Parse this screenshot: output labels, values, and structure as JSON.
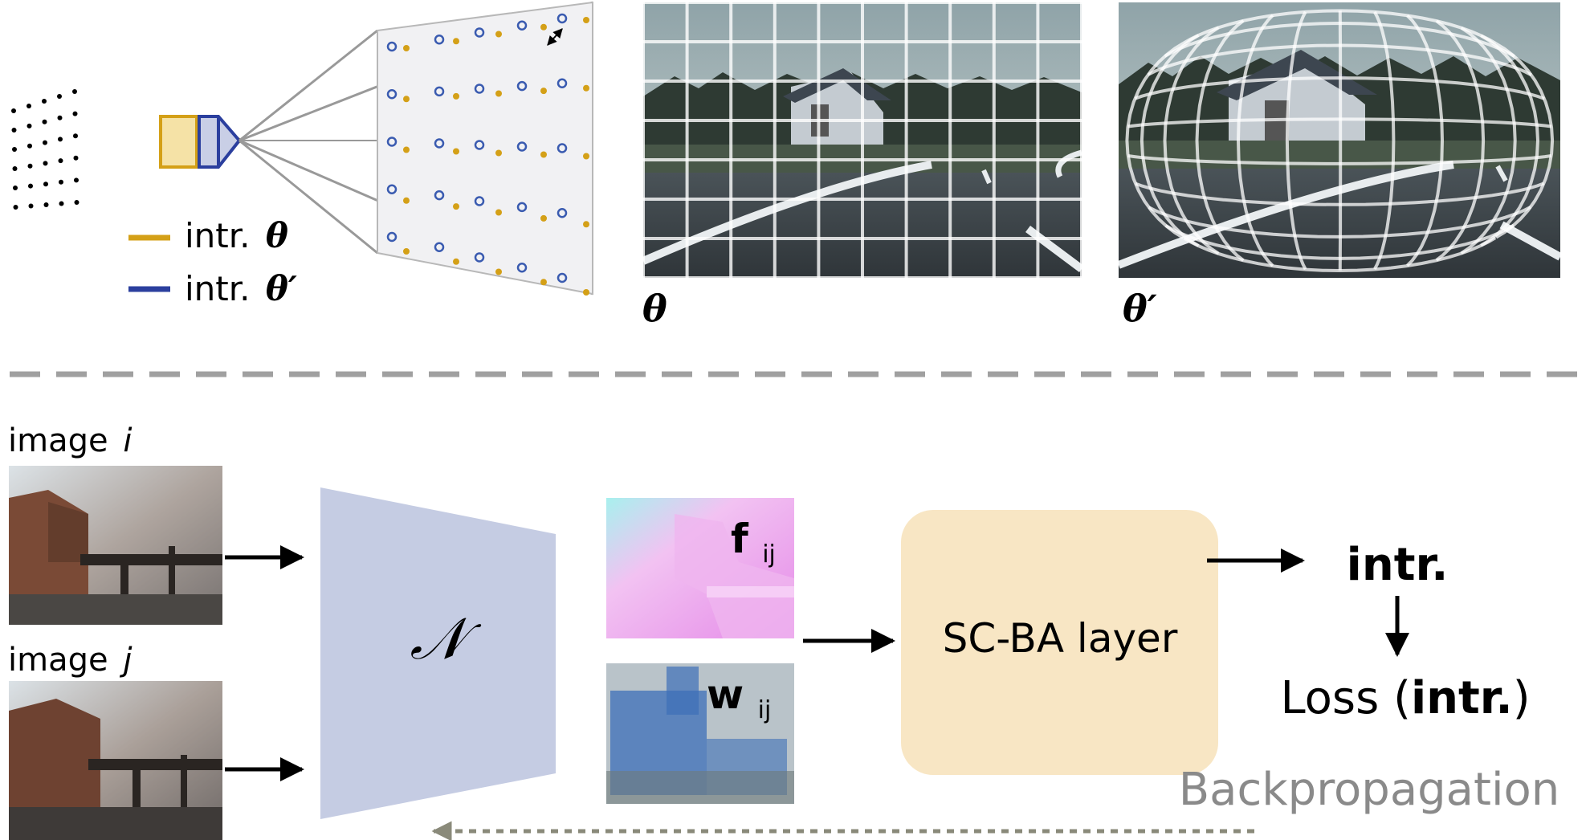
{
  "top": {
    "legend": {
      "intr_theta": "intr.",
      "intr_theta_prime": "intr.",
      "theta_symbol": "θ",
      "theta_prime_symbol": "θ′"
    },
    "image_labels": {
      "left": "θ",
      "right": "θ′"
    }
  },
  "bottom": {
    "image_i_label": "image",
    "image_i_var": "i",
    "image_j_label": "image",
    "image_j_var": "j",
    "network_symbol": "𝒩",
    "flow_label": "f",
    "flow_sub": "ij",
    "weight_label": "w",
    "weight_sub": "ij",
    "scba_label": "SC-BA layer",
    "intr_label": "intr.",
    "loss_prefix": "Loss (",
    "loss_bold": "intr.",
    "loss_suffix": ")",
    "backprop_label": "Backpropagation"
  },
  "colors": {
    "gold": "#d4a017",
    "blue": "#2b3f9e",
    "net_fill": "#c5cce3",
    "scba_fill": "#f8e6c4",
    "dash_gray": "#a0a0a0",
    "backprop_gray": "#8a8a8a"
  }
}
